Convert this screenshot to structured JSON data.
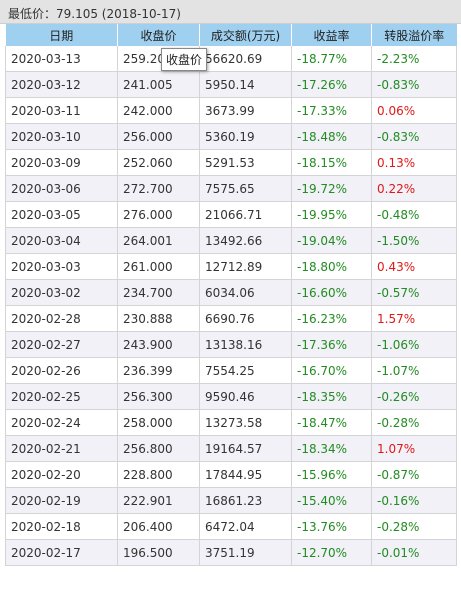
{
  "header": {
    "latest_price": "最低价：79.105 (2018-10-17)"
  },
  "columns": [
    "日期",
    "收盘价",
    "成交额(万元)",
    "收益率",
    "转股溢价率"
  ],
  "tooltip": "收盘价",
  "colors": {
    "header_bg": "#9fd0ef",
    "negative": "#228b22",
    "positive": "#e01818"
  },
  "rows": [
    {
      "date": "2020-03-13",
      "close": "259.200",
      "volume": "56620.69",
      "yield": "-18.77%",
      "premium": "-2.23%"
    },
    {
      "date": "2020-03-12",
      "close": "241.005",
      "volume": "5950.14",
      "yield": "-17.26%",
      "premium": "-0.83%"
    },
    {
      "date": "2020-03-11",
      "close": "242.000",
      "volume": "3673.99",
      "yield": "-17.33%",
      "premium": "0.06%"
    },
    {
      "date": "2020-03-10",
      "close": "256.000",
      "volume": "5360.19",
      "yield": "-18.48%",
      "premium": "-0.83%"
    },
    {
      "date": "2020-03-09",
      "close": "252.060",
      "volume": "5291.53",
      "yield": "-18.15%",
      "premium": "0.13%"
    },
    {
      "date": "2020-03-06",
      "close": "272.700",
      "volume": "7575.65",
      "yield": "-19.72%",
      "premium": "0.22%"
    },
    {
      "date": "2020-03-05",
      "close": "276.000",
      "volume": "21066.71",
      "yield": "-19.95%",
      "premium": "-0.48%"
    },
    {
      "date": "2020-03-04",
      "close": "264.001",
      "volume": "13492.66",
      "yield": "-19.04%",
      "premium": "-1.50%"
    },
    {
      "date": "2020-03-03",
      "close": "261.000",
      "volume": "12712.89",
      "yield": "-18.80%",
      "premium": "0.43%"
    },
    {
      "date": "2020-03-02",
      "close": "234.700",
      "volume": "6034.06",
      "yield": "-16.60%",
      "premium": "-0.57%"
    },
    {
      "date": "2020-02-28",
      "close": "230.888",
      "volume": "6690.76",
      "yield": "-16.23%",
      "premium": "1.57%"
    },
    {
      "date": "2020-02-27",
      "close": "243.900",
      "volume": "13138.16",
      "yield": "-17.36%",
      "premium": "-1.06%"
    },
    {
      "date": "2020-02-26",
      "close": "236.399",
      "volume": "7554.25",
      "yield": "-16.70%",
      "premium": "-1.07%"
    },
    {
      "date": "2020-02-25",
      "close": "256.300",
      "volume": "9590.46",
      "yield": "-18.35%",
      "premium": "-0.26%"
    },
    {
      "date": "2020-02-24",
      "close": "258.000",
      "volume": "13273.58",
      "yield": "-18.47%",
      "premium": "-0.28%"
    },
    {
      "date": "2020-02-21",
      "close": "256.800",
      "volume": "19164.57",
      "yield": "-18.34%",
      "premium": "1.07%"
    },
    {
      "date": "2020-02-20",
      "close": "228.800",
      "volume": "17844.95",
      "yield": "-15.96%",
      "premium": "-0.87%"
    },
    {
      "date": "2020-02-19",
      "close": "222.901",
      "volume": "16861.23",
      "yield": "-15.40%",
      "premium": "-0.16%"
    },
    {
      "date": "2020-02-18",
      "close": "206.400",
      "volume": "6472.04",
      "yield": "-13.76%",
      "premium": "-0.28%"
    },
    {
      "date": "2020-02-17",
      "close": "196.500",
      "volume": "3751.19",
      "yield": "-12.70%",
      "premium": "-0.01%"
    }
  ]
}
